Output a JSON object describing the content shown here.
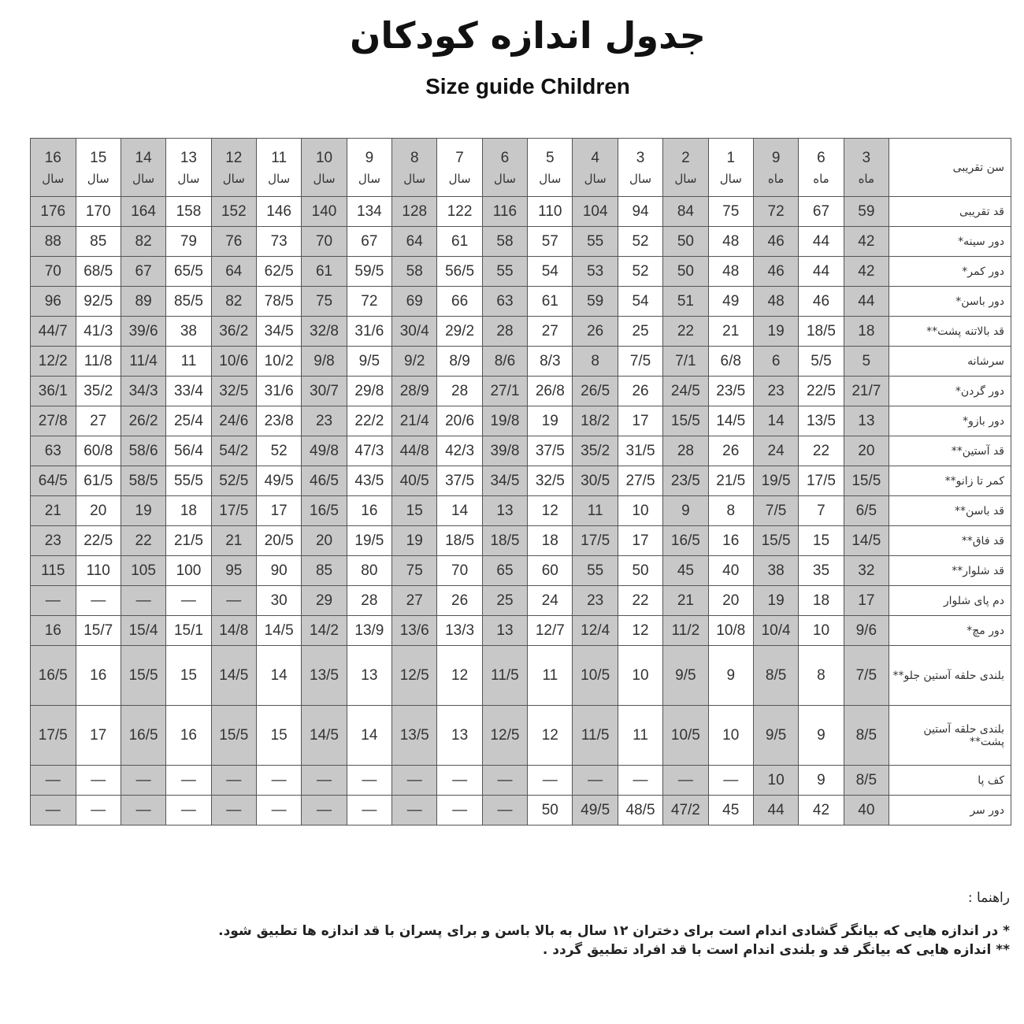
{
  "title": "جدول اندازه کودکان",
  "subtitle": "Size guide Children",
  "colors": {
    "shaded_column": "#c8c8c8",
    "border": "#555555"
  },
  "table": {
    "header_label": "سن تقریبی",
    "ages": [
      {
        "n": "3",
        "u": "ماه"
      },
      {
        "n": "6",
        "u": "ماه"
      },
      {
        "n": "9",
        "u": "ماه"
      },
      {
        "n": "1",
        "u": "سال"
      },
      {
        "n": "2",
        "u": "سال"
      },
      {
        "n": "3",
        "u": "سال"
      },
      {
        "n": "4",
        "u": "سال"
      },
      {
        "n": "5",
        "u": "سال"
      },
      {
        "n": "6",
        "u": "سال"
      },
      {
        "n": "7",
        "u": "سال"
      },
      {
        "n": "8",
        "u": "سال"
      },
      {
        "n": "9",
        "u": "سال"
      },
      {
        "n": "10",
        "u": "سال"
      },
      {
        "n": "11",
        "u": "سال"
      },
      {
        "n": "12",
        "u": "سال"
      },
      {
        "n": "13",
        "u": "سال"
      },
      {
        "n": "14",
        "u": "سال"
      },
      {
        "n": "15",
        "u": "سال"
      },
      {
        "n": "16",
        "u": "سال"
      }
    ],
    "rows": [
      {
        "label": "قد تقریبی",
        "values": [
          "59",
          "67",
          "72",
          "75",
          "84",
          "94",
          "104",
          "110",
          "116",
          "122",
          "128",
          "134",
          "140",
          "146",
          "152",
          "158",
          "164",
          "170",
          "176"
        ]
      },
      {
        "label": "دور سینه*",
        "values": [
          "42",
          "44",
          "46",
          "48",
          "50",
          "52",
          "55",
          "57",
          "58",
          "61",
          "64",
          "67",
          "70",
          "73",
          "76",
          "79",
          "82",
          "85",
          "88"
        ]
      },
      {
        "label": "دور کمر*",
        "values": [
          "42",
          "44",
          "46",
          "48",
          "50",
          "52",
          "53",
          "54",
          "55",
          "56/5",
          "58",
          "59/5",
          "61",
          "62/5",
          "64",
          "65/5",
          "67",
          "68/5",
          "70"
        ]
      },
      {
        "label": "دور باسن*",
        "values": [
          "44",
          "46",
          "48",
          "49",
          "51",
          "54",
          "59",
          "61",
          "63",
          "66",
          "69",
          "72",
          "75",
          "78/5",
          "82",
          "85/5",
          "89",
          "92/5",
          "96"
        ]
      },
      {
        "label": "قد بالاتنه پشت**",
        "values": [
          "18",
          "18/5",
          "19",
          "21",
          "22",
          "25",
          "26",
          "27",
          "28",
          "29/2",
          "30/4",
          "31/6",
          "32/8",
          "34/5",
          "36/2",
          "38",
          "39/6",
          "41/3",
          "44/7"
        ]
      },
      {
        "label": "سرشانه",
        "values": [
          "5",
          "5/5",
          "6",
          "6/8",
          "7/1",
          "7/5",
          "8",
          "8/3",
          "8/6",
          "8/9",
          "9/2",
          "9/5",
          "9/8",
          "10/2",
          "10/6",
          "11",
          "11/4",
          "11/8",
          "12/2"
        ]
      },
      {
        "label": "دور گردن*",
        "values": [
          "21/7",
          "22/5",
          "23",
          "23/5",
          "24/5",
          "26",
          "26/5",
          "26/8",
          "27/1",
          "28",
          "28/9",
          "29/8",
          "30/7",
          "31/6",
          "32/5",
          "33/4",
          "34/3",
          "35/2",
          "36/1"
        ]
      },
      {
        "label": "دور بازو*",
        "values": [
          "13",
          "13/5",
          "14",
          "14/5",
          "15/5",
          "17",
          "18/2",
          "19",
          "19/8",
          "20/6",
          "21/4",
          "22/2",
          "23",
          "23/8",
          "24/6",
          "25/4",
          "26/2",
          "27",
          "27/8"
        ]
      },
      {
        "label": "قد آستین**",
        "values": [
          "20",
          "22",
          "24",
          "26",
          "28",
          "31/5",
          "35/2",
          "37/5",
          "39/8",
          "42/3",
          "44/8",
          "47/3",
          "49/8",
          "52",
          "54/2",
          "56/4",
          "58/6",
          "60/8",
          "63"
        ]
      },
      {
        "label": "کمر تا زانو**",
        "values": [
          "15/5",
          "17/5",
          "19/5",
          "21/5",
          "23/5",
          "27/5",
          "30/5",
          "32/5",
          "34/5",
          "37/5",
          "40/5",
          "43/5",
          "46/5",
          "49/5",
          "52/5",
          "55/5",
          "58/5",
          "61/5",
          "64/5"
        ]
      },
      {
        "label": "قد باسن**",
        "values": [
          "6/5",
          "7",
          "7/5",
          "8",
          "9",
          "10",
          "11",
          "12",
          "13",
          "14",
          "15",
          "16",
          "16/5",
          "17",
          "17/5",
          "18",
          "19",
          "20",
          "21"
        ]
      },
      {
        "label": "قد فاق**",
        "values": [
          "14/5",
          "15",
          "15/5",
          "16",
          "16/5",
          "17",
          "17/5",
          "18",
          "18/5",
          "18/5",
          "19",
          "19/5",
          "20",
          "20/5",
          "21",
          "21/5",
          "22",
          "22/5",
          "23"
        ]
      },
      {
        "label": "قد شلوار**",
        "values": [
          "32",
          "35",
          "38",
          "40",
          "45",
          "50",
          "55",
          "60",
          "65",
          "70",
          "75",
          "80",
          "85",
          "90",
          "95",
          "100",
          "105",
          "110",
          "115"
        ]
      },
      {
        "label": "دم پای شلوار",
        "values": [
          "17",
          "18",
          "19",
          "20",
          "21",
          "22",
          "23",
          "24",
          "25",
          "26",
          "27",
          "28",
          "29",
          "30",
          "—",
          "—",
          "—",
          "—",
          "—"
        ]
      },
      {
        "label": "دور مچ*",
        "values": [
          "9/6",
          "10",
          "10/4",
          "10/8",
          "11/2",
          "12",
          "12/4",
          "12/7",
          "13",
          "13/3",
          "13/6",
          "13/9",
          "14/2",
          "14/5",
          "14/8",
          "15/1",
          "15/4",
          "15/7",
          "16"
        ]
      },
      {
        "label": "بلندی حلقه آستین جلو**",
        "tall": true,
        "values": [
          "7/5",
          "8",
          "8/5",
          "9",
          "9/5",
          "10",
          "10/5",
          "11",
          "11/5",
          "12",
          "12/5",
          "13",
          "13/5",
          "14",
          "14/5",
          "15",
          "15/5",
          "16",
          "16/5"
        ]
      },
      {
        "label": "بلندی حلقه آستین پشت**",
        "tall": true,
        "values": [
          "8/5",
          "9",
          "9/5",
          "10",
          "10/5",
          "11",
          "11/5",
          "12",
          "12/5",
          "13",
          "13/5",
          "14",
          "14/5",
          "15",
          "15/5",
          "16",
          "16/5",
          "17",
          "17/5"
        ]
      },
      {
        "label": "کف پا",
        "values": [
          "8/5",
          "9",
          "10",
          "—",
          "—",
          "—",
          "—",
          "—",
          "—",
          "—",
          "—",
          "—",
          "—",
          "—",
          "—",
          "—",
          "—",
          "—",
          "—"
        ]
      },
      {
        "label": "دور سر",
        "values": [
          "40",
          "42",
          "44",
          "45",
          "47/2",
          "48/5",
          "49/5",
          "50",
          "—",
          "—",
          "—",
          "—",
          "—",
          "—",
          "—",
          "—",
          "—",
          "—",
          "—"
        ]
      }
    ]
  },
  "notes": {
    "heading": "راهنما :",
    "items": [
      "* در اندازه هایی که بیانگر گشادی اندام است  برای دختران ۱۲ سال به بالا باسن و برای پسران با  قد اندازه ها تطبیق شود.",
      "** اندازه هایی که بیانگر قد و بلندی اندام است با قد افراد تطبیق گردد ."
    ]
  }
}
